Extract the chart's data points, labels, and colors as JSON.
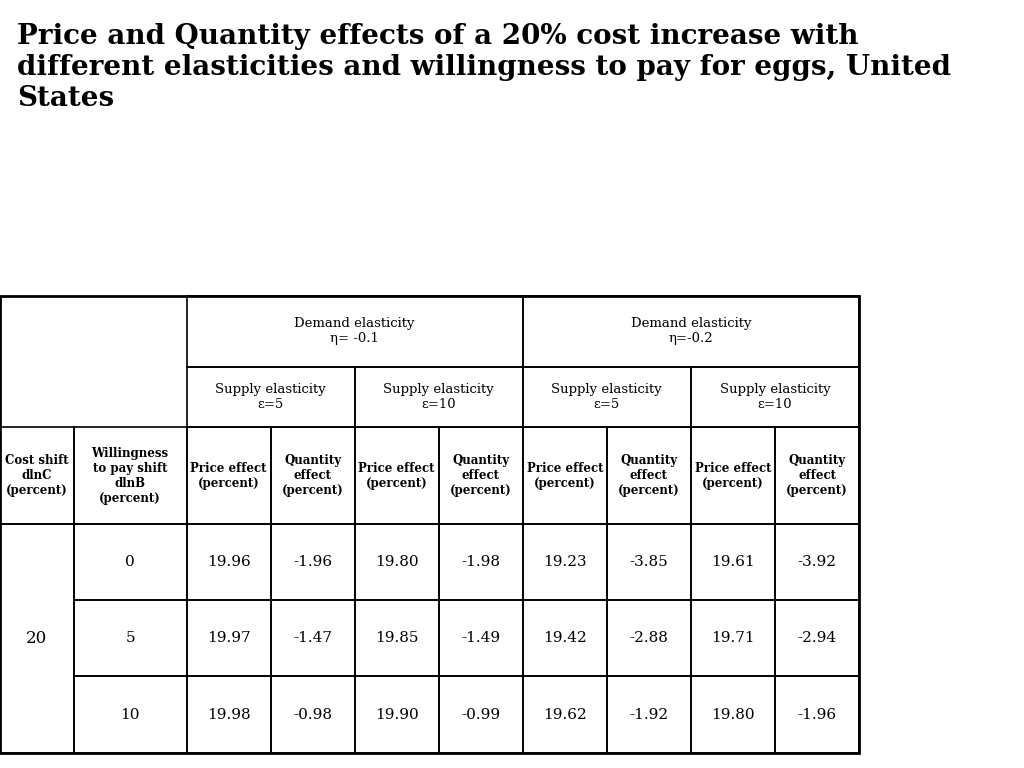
{
  "title": "Price and Quantity effects of a 20% cost increase with\ndifferent elasticities and willingness to pay for eggs, United\nStates",
  "title_fontsize": 20,
  "background_color": "#ffffff",
  "row_header1": "Cost shift\ndlnC\n(percent)",
  "row_header2": "Willingness\nto pay shift\ndlnB\n(percent)",
  "demand_headers": [
    "Demand elasticity\nη= -0.1",
    "Demand elasticity\nη=-0.2"
  ],
  "supply_headers": [
    "Supply elasticity\nε=5",
    "Supply elasticity\nε=10",
    "Supply elasticity\nε=5",
    "Supply elasticity\nε=10"
  ],
  "col_headers": [
    "Price effect\n(percent)",
    "Quantity\neffect\n(percent)",
    "Price effect\n(percent)",
    "Quantity\neffect\n(percent)",
    "Price effect\n(percent)",
    "Quantity\neffect\n(percent)",
    "Price effect\n(percent)",
    "Quantity\neffect\n(percent)"
  ],
  "wtp_values": [
    0,
    5,
    10
  ],
  "cost_shift_value": "20",
  "data_rows": [
    [
      19.96,
      -1.96,
      19.8,
      -1.98,
      19.23,
      -3.85,
      19.61,
      -3.92
    ],
    [
      19.97,
      -1.47,
      19.85,
      -1.49,
      19.42,
      -2.88,
      19.71,
      -2.94
    ],
    [
      19.98,
      -0.98,
      19.9,
      -0.99,
      19.62,
      -1.92,
      19.8,
      -1.96
    ]
  ]
}
